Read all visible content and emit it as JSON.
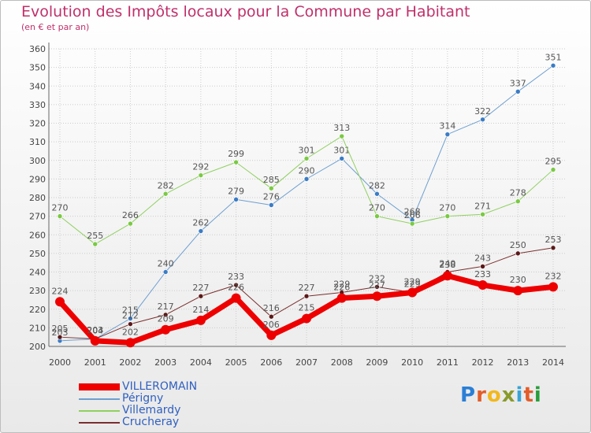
{
  "title": "Evolution des Impôts locaux pour la Commune par Habitant",
  "subtitle": "(en € et par an)",
  "logo": {
    "letters": [
      "P",
      "r",
      "o",
      "x",
      "i",
      "t",
      "i"
    ],
    "colors": [
      "#2a7fd6",
      "#e35d2a",
      "#f2b81c",
      "#8a9a2b",
      "#3aa4d6",
      "#e35d2a",
      "#2a9d3a"
    ]
  },
  "chart_data": {
    "type": "line",
    "title": "Evolution des Impôts locaux pour la Commune par Habitant",
    "subtitle": "(en € et par an)",
    "xlabel": "",
    "ylabel": "",
    "categories": [
      "2000",
      "2001",
      "2002",
      "2003",
      "2004",
      "2005",
      "2006",
      "2007",
      "2008",
      "2009",
      "2010",
      "2011",
      "2012",
      "2013",
      "2014"
    ],
    "ylim": [
      200,
      360
    ],
    "yticks": [
      200,
      210,
      220,
      230,
      240,
      250,
      260,
      270,
      280,
      290,
      300,
      310,
      320,
      330,
      340,
      350,
      360
    ],
    "legend_position": "bottom-left",
    "series": [
      {
        "name": "Périgny",
        "color": "#6e9fd0",
        "point_color": "#3a7cc6",
        "width": 1,
        "values": [
          203,
          204,
          215,
          240,
          262,
          279,
          276,
          290,
          301,
          282,
          268,
          314,
          322,
          337,
          351
        ]
      },
      {
        "name": "Villemardy",
        "color": "#90d060",
        "point_color": "#7ac943",
        "width": 1,
        "values": [
          270,
          255,
          266,
          282,
          292,
          299,
          285,
          301,
          313,
          270,
          266,
          270,
          271,
          278,
          295
        ]
      },
      {
        "name": "Crucheray",
        "color": "#7a2e2e",
        "point_color": "#5a1818",
        "width": 1,
        "values": [
          205,
          204,
          212,
          217,
          227,
          233,
          216,
          227,
          229,
          232,
          229,
          240,
          243,
          250,
          253
        ]
      },
      {
        "name": "VILLEROMAIN",
        "color": "#ee0000",
        "point_color": "#ee0000",
        "width": 7,
        "values": [
          224,
          203,
          202,
          209,
          214,
          226,
          206,
          215,
          226,
          227,
          229,
          238,
          233,
          230,
          232
        ]
      }
    ]
  }
}
